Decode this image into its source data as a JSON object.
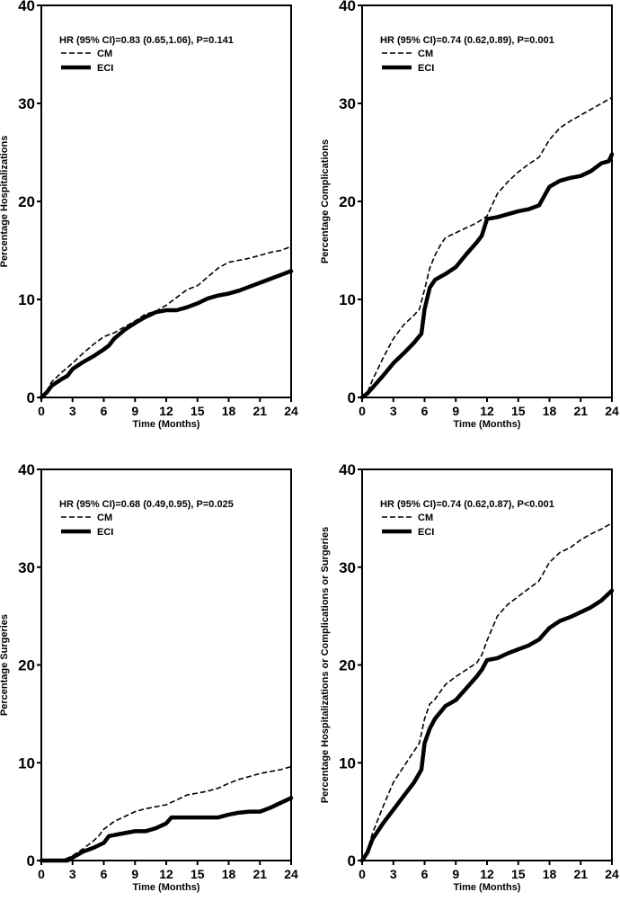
{
  "chart_data": [
    {
      "type": "line",
      "title": "",
      "xlabel": "Time (Months)",
      "ylabel": "Percentage Hospitalizations",
      "xlim": [
        0,
        24
      ],
      "ylim": [
        0,
        40
      ],
      "x_ticks": [
        "0",
        "3",
        "6",
        "9",
        "12",
        "15",
        "18",
        "21",
        "24"
      ],
      "y_ticks": [
        "0",
        "10",
        "20",
        "30",
        "40"
      ],
      "annotation": "HR (95% CI)=0.83 (0.65,1.06), P=0.141",
      "legend_position": "top-left",
      "series": [
        {
          "name": "CM",
          "style": "dashed",
          "color": "#000000",
          "points": [
            [
              0,
              0
            ],
            [
              0.5,
              0.6
            ],
            [
              1,
              1.6
            ],
            [
              2,
              2.6
            ],
            [
              3,
              3.5
            ],
            [
              4,
              4.5
            ],
            [
              5,
              5.4
            ],
            [
              6,
              6.2
            ],
            [
              7,
              6.6
            ],
            [
              8,
              7.2
            ],
            [
              9,
              7.8
            ],
            [
              10,
              8.5
            ],
            [
              11,
              8.8
            ],
            [
              12,
              9.4
            ],
            [
              13,
              10.2
            ],
            [
              14,
              11.0
            ],
            [
              15,
              11.4
            ],
            [
              16,
              12.3
            ],
            [
              17,
              13.2
            ],
            [
              18,
              13.8
            ],
            [
              19,
              14.0
            ],
            [
              20,
              14.2
            ],
            [
              21,
              14.5
            ],
            [
              22,
              14.8
            ],
            [
              23,
              15.0
            ],
            [
              24,
              15.4
            ]
          ]
        },
        {
          "name": "ECI",
          "style": "solid-thick",
          "color": "#000000",
          "points": [
            [
              0,
              0
            ],
            [
              0.5,
              0.5
            ],
            [
              1,
              1.2
            ],
            [
              2,
              1.9
            ],
            [
              2.5,
              2.2
            ],
            [
              3,
              2.9
            ],
            [
              4,
              3.6
            ],
            [
              5,
              4.2
            ],
            [
              6,
              4.9
            ],
            [
              6.5,
              5.3
            ],
            [
              7,
              6.0
            ],
            [
              8,
              6.9
            ],
            [
              9,
              7.6
            ],
            [
              10,
              8.2
            ],
            [
              11,
              8.7
            ],
            [
              12,
              8.9
            ],
            [
              13,
              8.9
            ],
            [
              14,
              9.2
            ],
            [
              15,
              9.6
            ],
            [
              16,
              10.1
            ],
            [
              17,
              10.4
            ],
            [
              18,
              10.6
            ],
            [
              19,
              10.9
            ],
            [
              20,
              11.3
            ],
            [
              21,
              11.7
            ],
            [
              22,
              12.1
            ],
            [
              23,
              12.5
            ],
            [
              24,
              12.9
            ]
          ]
        }
      ]
    },
    {
      "type": "line",
      "title": "",
      "xlabel": "Time (Months)",
      "ylabel": "Percentage Complications",
      "xlim": [
        0,
        24
      ],
      "ylim": [
        0,
        40
      ],
      "x_ticks": [
        "0",
        "3",
        "6",
        "9",
        "12",
        "15",
        "18",
        "21",
        "24"
      ],
      "y_ticks": [
        "0",
        "10",
        "20",
        "30",
        "40"
      ],
      "annotation": "HR (95% CI)=0.74 (0.62,0.89), P=0.001",
      "legend_position": "top-left",
      "series": [
        {
          "name": "CM",
          "style": "dashed",
          "color": "#000000",
          "points": [
            [
              0,
              0
            ],
            [
              0.5,
              0.5
            ],
            [
              1,
              1.8
            ],
            [
              2,
              4.0
            ],
            [
              3,
              6.0
            ],
            [
              4,
              7.4
            ],
            [
              5,
              8.4
            ],
            [
              5.5,
              9.0
            ],
            [
              6,
              11.0
            ],
            [
              6.5,
              13.2
            ],
            [
              7,
              14.5
            ],
            [
              7.5,
              15.5
            ],
            [
              8,
              16.3
            ],
            [
              9,
              16.8
            ],
            [
              10,
              17.3
            ],
            [
              11,
              17.8
            ],
            [
              12,
              18.5
            ],
            [
              13,
              20.8
            ],
            [
              14,
              22.0
            ],
            [
              15,
              23.0
            ],
            [
              16,
              23.8
            ],
            [
              17,
              24.5
            ],
            [
              18,
              26.3
            ],
            [
              19,
              27.5
            ],
            [
              20,
              28.2
            ],
            [
              21,
              28.8
            ],
            [
              22,
              29.4
            ],
            [
              23,
              30.0
            ],
            [
              24,
              30.6
            ]
          ]
        },
        {
          "name": "ECI",
          "style": "solid-thick",
          "color": "#000000",
          "points": [
            [
              0,
              0
            ],
            [
              0.5,
              0.4
            ],
            [
              1,
              1.0
            ],
            [
              2,
              2.2
            ],
            [
              3,
              3.5
            ],
            [
              4,
              4.5
            ],
            [
              5,
              5.6
            ],
            [
              5.7,
              6.5
            ],
            [
              6,
              9.0
            ],
            [
              6.5,
              11.2
            ],
            [
              7,
              12.0
            ],
            [
              8,
              12.6
            ],
            [
              9,
              13.3
            ],
            [
              10,
              14.6
            ],
            [
              11,
              15.8
            ],
            [
              11.5,
              16.5
            ],
            [
              12,
              18.2
            ],
            [
              13,
              18.4
            ],
            [
              14,
              18.7
            ],
            [
              15,
              19.0
            ],
            [
              16,
              19.2
            ],
            [
              17,
              19.6
            ],
            [
              18,
              21.5
            ],
            [
              19,
              22.1
            ],
            [
              20,
              22.4
            ],
            [
              21,
              22.6
            ],
            [
              22,
              23.1
            ],
            [
              23,
              23.9
            ],
            [
              23.7,
              24.1
            ],
            [
              24,
              24.8
            ]
          ]
        }
      ]
    },
    {
      "type": "line",
      "title": "",
      "xlabel": "Time (Months)",
      "ylabel": "Percentage Surgeries",
      "xlim": [
        0,
        24
      ],
      "ylim": [
        0,
        40
      ],
      "x_ticks": [
        "0",
        "3",
        "6",
        "9",
        "12",
        "15",
        "18",
        "21",
        "24"
      ],
      "y_ticks": [
        "0",
        "10",
        "20",
        "30",
        "40"
      ],
      "annotation": "HR (95% CI)=0.68 (0.49,0.95), P=0.025",
      "legend_position": "top-left",
      "series": [
        {
          "name": "CM",
          "style": "dashed",
          "color": "#000000",
          "points": [
            [
              0,
              0
            ],
            [
              2,
              0
            ],
            [
              3,
              0.5
            ],
            [
              4,
              1.2
            ],
            [
              5,
              2.0
            ],
            [
              5.5,
              2.5
            ],
            [
              6,
              3.2
            ],
            [
              7,
              4.0
            ],
            [
              8,
              4.5
            ],
            [
              9,
              5.0
            ],
            [
              10,
              5.3
            ],
            [
              11,
              5.5
            ],
            [
              12,
              5.7
            ],
            [
              13,
              6.2
            ],
            [
              14,
              6.7
            ],
            [
              15,
              6.9
            ],
            [
              16,
              7.1
            ],
            [
              17,
              7.4
            ],
            [
              18,
              7.9
            ],
            [
              19,
              8.3
            ],
            [
              20,
              8.6
            ],
            [
              21,
              8.9
            ],
            [
              22,
              9.1
            ],
            [
              23,
              9.3
            ],
            [
              24,
              9.6
            ]
          ]
        },
        {
          "name": "ECI",
          "style": "solid-thick",
          "color": "#000000",
          "points": [
            [
              0,
              0
            ],
            [
              2.5,
              0
            ],
            [
              3,
              0.3
            ],
            [
              4,
              0.9
            ],
            [
              5,
              1.3
            ],
            [
              6,
              1.8
            ],
            [
              6.5,
              2.5
            ],
            [
              7,
              2.6
            ],
            [
              8,
              2.8
            ],
            [
              9,
              3.0
            ],
            [
              10,
              3.0
            ],
            [
              11,
              3.3
            ],
            [
              12,
              3.8
            ],
            [
              12.5,
              4.4
            ],
            [
              13,
              4.4
            ],
            [
              14,
              4.4
            ],
            [
              15,
              4.4
            ],
            [
              16,
              4.4
            ],
            [
              17,
              4.4
            ],
            [
              18,
              4.7
            ],
            [
              19,
              4.9
            ],
            [
              20,
              5.0
            ],
            [
              21,
              5.0
            ],
            [
              22,
              5.4
            ],
            [
              23,
              5.9
            ],
            [
              24,
              6.4
            ]
          ]
        }
      ]
    },
    {
      "type": "line",
      "title": "",
      "xlabel": "Time (Months)",
      "ylabel": "Percentage Hospitalizations or Complications or Surgeries",
      "xlim": [
        0,
        24
      ],
      "ylim": [
        0,
        40
      ],
      "x_ticks": [
        "0",
        "3",
        "6",
        "9",
        "12",
        "15",
        "18",
        "21",
        "24"
      ],
      "y_ticks": [
        "0",
        "10",
        "20",
        "30",
        "40"
      ],
      "annotation": "HR (95% CI)=0.74 (0.62,0.87), P<0.001",
      "legend_position": "top-left",
      "series": [
        {
          "name": "CM",
          "style": "dashed",
          "color": "#000000",
          "points": [
            [
              0,
              0
            ],
            [
              0.5,
              1.0
            ],
            [
              1,
              2.8
            ],
            [
              2,
              5.5
            ],
            [
              3,
              8.0
            ],
            [
              4,
              9.6
            ],
            [
              5,
              11.2
            ],
            [
              5.5,
              12.0
            ],
            [
              6,
              14.5
            ],
            [
              6.5,
              16.0
            ],
            [
              7,
              16.5
            ],
            [
              8,
              18.0
            ],
            [
              9,
              18.8
            ],
            [
              10,
              19.5
            ],
            [
              11,
              20.2
            ],
            [
              11.5,
              21.0
            ],
            [
              12,
              22.5
            ],
            [
              13,
              25.0
            ],
            [
              14,
              26.2
            ],
            [
              15,
              27.0
            ],
            [
              16,
              27.8
            ],
            [
              17,
              28.6
            ],
            [
              18,
              30.5
            ],
            [
              19,
              31.5
            ],
            [
              20,
              32.0
            ],
            [
              21,
              32.8
            ],
            [
              22,
              33.4
            ],
            [
              23,
              33.9
            ],
            [
              24,
              34.5
            ]
          ]
        },
        {
          "name": "ECI",
          "style": "solid-thick",
          "color": "#000000",
          "points": [
            [
              0,
              0
            ],
            [
              0.5,
              0.8
            ],
            [
              1,
              2.2
            ],
            [
              2,
              3.8
            ],
            [
              3,
              5.2
            ],
            [
              4,
              6.6
            ],
            [
              5,
              8.0
            ],
            [
              5.7,
              9.3
            ],
            [
              6,
              12.0
            ],
            [
              6.5,
              13.5
            ],
            [
              7,
              14.5
            ],
            [
              8,
              15.8
            ],
            [
              9,
              16.4
            ],
            [
              10,
              17.6
            ],
            [
              11,
              18.8
            ],
            [
              11.5,
              19.5
            ],
            [
              12,
              20.5
            ],
            [
              13,
              20.7
            ],
            [
              14,
              21.2
            ],
            [
              15,
              21.6
            ],
            [
              16,
              22.0
            ],
            [
              17,
              22.6
            ],
            [
              18,
              23.8
            ],
            [
              19,
              24.5
            ],
            [
              20,
              24.9
            ],
            [
              21,
              25.4
            ],
            [
              22,
              25.9
            ],
            [
              23,
              26.6
            ],
            [
              24,
              27.6
            ]
          ]
        }
      ]
    }
  ]
}
